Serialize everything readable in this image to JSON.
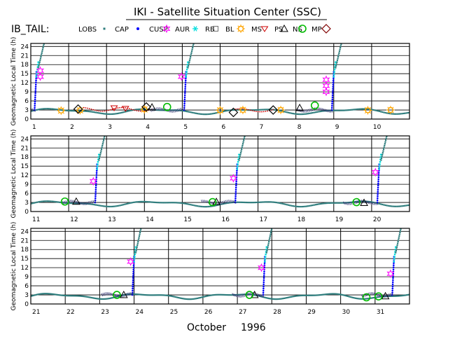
{
  "page": {
    "title": "IKI - Satellite Situation Center (SSC)",
    "region_label": "IB_TAIL:",
    "month_label": "October",
    "year_label": "1996"
  },
  "legend": [
    {
      "label": "LOBS",
      "symbol": "none",
      "color": "#000000"
    },
    {
      "label": "CAP",
      "symbol": "square",
      "color": "#2e7d7d"
    },
    {
      "label": "CUSP",
      "symbol": "dot",
      "color": "#0000ff"
    },
    {
      "label": "AUR",
      "symbol": "star",
      "color": "#ff00ff"
    },
    {
      "label": "RB",
      "symbol": "asterisk",
      "color": "#00dddd"
    },
    {
      "label": "BL",
      "symbol": "box",
      "color": "#707070"
    },
    {
      "label": "MS",
      "symbol": "sun",
      "color": "#ffa500"
    },
    {
      "label": "PS",
      "symbol": "triangle-down",
      "color": "#cc0000"
    },
    {
      "label": "NS",
      "symbol": "triangle-up",
      "color": "#000000"
    },
    {
      "label": "MP",
      "symbol": "circle",
      "color": "#00bb00"
    },
    {
      "label": "",
      "symbol": "diamond",
      "color": "#800000"
    }
  ],
  "colors": {
    "CAP": "#2e7d7d",
    "CUSP": "#0000ff",
    "AUR": "#ff00ff",
    "RB": "#00dddd",
    "BL": "#707070",
    "MS": "#ffa500",
    "PS": "#cc0000",
    "NS": "#000000",
    "MP": "#00bb00",
    "MPmarker": "#800000",
    "frame": "#000000"
  },
  "chart_data": [
    {
      "type": "scatter",
      "ylabel": "Geomagnetic Local Time (h)",
      "ylim": [
        0,
        25
      ],
      "xlim": [
        1,
        11
      ],
      "yticks": [
        "0",
        "3",
        "6",
        "9",
        "12",
        "15",
        "18",
        "21",
        "24"
      ],
      "xticks": [
        "1",
        "2",
        "3",
        "4",
        "5",
        "6",
        "7",
        "8",
        "9",
        "10"
      ],
      "rise_days": [
        1.1,
        5.05,
        8.95
      ],
      "rise_after_days": [
        1.35,
        5.3,
        9.2
      ],
      "events": {
        "AUR": [
          [
            1.25,
            14
          ],
          [
            1.25,
            16
          ],
          [
            4.98,
            14
          ],
          [
            8.8,
            9
          ],
          [
            8.8,
            11
          ],
          [
            8.8,
            13
          ]
        ],
        "MP": [
          [
            4.6,
            4
          ],
          [
            8.5,
            4.5
          ]
        ],
        "MPmarker": [
          [
            2.25,
            3.3
          ],
          [
            4.05,
            4
          ],
          [
            6.35,
            2.2
          ],
          [
            7.4,
            3
          ]
        ],
        "MS": [
          [
            1.8,
            2.8
          ],
          [
            2.3,
            2.9
          ],
          [
            4.0,
            3.2
          ],
          [
            6.0,
            2.9
          ],
          [
            6.6,
            3
          ],
          [
            7.6,
            3
          ],
          [
            9.9,
            2.9
          ],
          [
            10.5,
            3
          ]
        ],
        "NS": [
          [
            4.2,
            3.9
          ],
          [
            8.1,
            3.7
          ]
        ],
        "PS": [
          [
            3.2,
            3.7
          ],
          [
            3.5,
            3.5
          ]
        ]
      }
    },
    {
      "type": "scatter",
      "ylabel": "Geomagnetic Local Time (h)",
      "ylim": [
        0,
        25
      ],
      "xlim": [
        11,
        21
      ],
      "yticks": [
        "0",
        "3",
        "6",
        "9",
        "12",
        "15",
        "18",
        "21",
        "24"
      ],
      "xticks": [
        "11",
        "12",
        "13",
        "14",
        "15",
        "16",
        "17",
        "18",
        "19",
        "20"
      ],
      "rise_days": [
        12.7,
        16.4,
        20.15
      ],
      "rise_after_days": [
        12.95,
        16.65,
        20.4
      ],
      "events": {
        "AUR": [
          [
            12.65,
            10
          ],
          [
            16.35,
            11
          ],
          [
            20.1,
            13
          ]
        ],
        "MP": [
          [
            11.9,
            3.3
          ],
          [
            15.8,
            3.1
          ],
          [
            19.6,
            3.1
          ]
        ],
        "MPmarker": [],
        "MS": [],
        "NS": [
          [
            12.2,
            3.3
          ],
          [
            15.9,
            3.2
          ],
          [
            19.8,
            2.9
          ]
        ],
        "PS": []
      }
    },
    {
      "type": "scatter",
      "ylabel": "Geomagnetic Local Time (h)",
      "ylim": [
        0,
        25
      ],
      "xlim": [
        21,
        32
      ],
      "yticks": [
        "0",
        "3",
        "6",
        "9",
        "12",
        "15",
        "18",
        "21",
        "24"
      ],
      "xticks": [
        "21",
        "22",
        "23",
        "24",
        "25",
        "26",
        "27",
        "28",
        "29",
        "30",
        "31"
      ],
      "rise_days": [
        23.95,
        27.75,
        31.5
      ],
      "rise_after_days": [
        24.2,
        28.0,
        31.75
      ],
      "events": {
        "AUR": [
          [
            23.9,
            14
          ],
          [
            27.7,
            12
          ],
          [
            31.45,
            10
          ]
        ],
        "MP": [
          [
            23.5,
            3
          ],
          [
            27.35,
            3
          ],
          [
            30.75,
            2.2
          ],
          [
            31.1,
            2.5
          ]
        ],
        "MPmarker": [],
        "MS": [],
        "NS": [
          [
            23.7,
            3
          ],
          [
            27.5,
            3
          ],
          [
            31.3,
            2.6
          ]
        ],
        "PS": []
      }
    }
  ]
}
